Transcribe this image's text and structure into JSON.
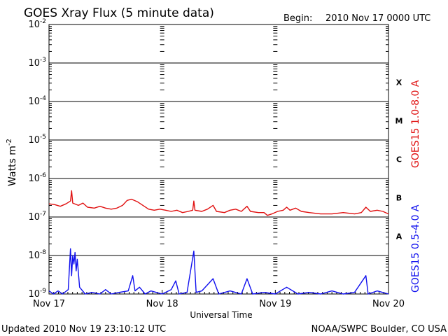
{
  "header": {
    "title": "GOES Xray Flux (5 minute data)",
    "begin_label": "Begin:",
    "begin_value": "2010 Nov 17 0000 UTC"
  },
  "footer": {
    "updated": "Updated 2010 Nov 19 23:10:12 UTC",
    "source": "NOAA/SWPC Boulder, CO USA"
  },
  "colors": {
    "long_channel": "#e01010",
    "short_channel": "#1010ee",
    "axes": "#000000"
  },
  "chart_data": {
    "type": "line",
    "title": "GOES Xray Flux (5 minute data)",
    "xlabel": "Universal Time",
    "ylabel_main": "Watts m",
    "ylabel_sup": "-2",
    "yscale": "log",
    "ylim": [
      1e-09,
      0.01
    ],
    "y_ticks": [
      {
        "v": 0.01,
        "base": "10",
        "exp": "-2"
      },
      {
        "v": 0.001,
        "base": "10",
        "exp": "-3"
      },
      {
        "v": 0.0001,
        "base": "10",
        "exp": "-4"
      },
      {
        "v": 1e-05,
        "base": "10",
        "exp": "-5"
      },
      {
        "v": 1e-06,
        "base": "10",
        "exp": "-6"
      },
      {
        "v": 1e-07,
        "base": "10",
        "exp": "-7"
      },
      {
        "v": 1e-08,
        "base": "10",
        "exp": "-8"
      },
      {
        "v": 1e-09,
        "base": "10",
        "exp": "-9"
      }
    ],
    "x_ticks": [
      "Nov 17",
      "Nov 18",
      "Nov 19",
      "Nov 20"
    ],
    "xlim_days": [
      0,
      3
    ],
    "grid": "horizontal lines at each decade",
    "flare_classes": [
      {
        "label": "X",
        "v": 0.000316
      },
      {
        "label": "M",
        "v": 3.16e-05
      },
      {
        "label": "C",
        "v": 3.16e-06
      },
      {
        "label": "B",
        "v": 3.16e-07
      },
      {
        "label": "A",
        "v": 3.16e-08
      }
    ],
    "series": [
      {
        "name": "GOES15 1.0-8.0 A",
        "color": "#e01010",
        "points": [
          [
            0.0,
            2.2e-07
          ],
          [
            0.05,
            2.1e-07
          ],
          [
            0.1,
            1.9e-07
          ],
          [
            0.15,
            2.2e-07
          ],
          [
            0.19,
            2.6e-07
          ],
          [
            0.2,
            4.8e-07
          ],
          [
            0.21,
            2.3e-07
          ],
          [
            0.26,
            2e-07
          ],
          [
            0.3,
            2.3e-07
          ],
          [
            0.34,
            1.8e-07
          ],
          [
            0.4,
            1.7e-07
          ],
          [
            0.45,
            1.9e-07
          ],
          [
            0.5,
            1.7e-07
          ],
          [
            0.55,
            1.6e-07
          ],
          [
            0.6,
            1.7e-07
          ],
          [
            0.65,
            2e-07
          ],
          [
            0.69,
            2.7e-07
          ],
          [
            0.73,
            2.9e-07
          ],
          [
            0.78,
            2.5e-07
          ],
          [
            0.83,
            2e-07
          ],
          [
            0.88,
            1.6e-07
          ],
          [
            0.93,
            1.5e-07
          ],
          [
            0.98,
            1.6e-07
          ],
          [
            1.03,
            1.5e-07
          ],
          [
            1.08,
            1.4e-07
          ],
          [
            1.13,
            1.5e-07
          ],
          [
            1.18,
            1.3e-07
          ],
          [
            1.23,
            1.4e-07
          ],
          [
            1.27,
            1.5e-07
          ],
          [
            1.28,
            2.6e-07
          ],
          [
            1.29,
            1.5e-07
          ],
          [
            1.35,
            1.4e-07
          ],
          [
            1.4,
            1.6e-07
          ],
          [
            1.45,
            2e-07
          ],
          [
            1.48,
            1.4e-07
          ],
          [
            1.55,
            1.3e-07
          ],
          [
            1.6,
            1.5e-07
          ],
          [
            1.65,
            1.6e-07
          ],
          [
            1.7,
            1.4e-07
          ],
          [
            1.75,
            1.9e-07
          ],
          [
            1.78,
            1.4e-07
          ],
          [
            1.85,
            1.3e-07
          ],
          [
            1.9,
            1.3e-07
          ],
          [
            1.93,
            1.1e-07
          ],
          [
            1.97,
            1.2e-07
          ],
          [
            2.02,
            1.4e-07
          ],
          [
            2.07,
            1.5e-07
          ],
          [
            2.1,
            1.8e-07
          ],
          [
            2.13,
            1.5e-07
          ],
          [
            2.18,
            1.7e-07
          ],
          [
            2.23,
            1.4e-07
          ],
          [
            2.3,
            1.3e-07
          ],
          [
            2.4,
            1.2e-07
          ],
          [
            2.5,
            1.2e-07
          ],
          [
            2.6,
            1.3e-07
          ],
          [
            2.7,
            1.2e-07
          ],
          [
            2.76,
            1.3e-07
          ],
          [
            2.8,
            1.8e-07
          ],
          [
            2.84,
            1.4e-07
          ],
          [
            2.9,
            1.5e-07
          ],
          [
            2.95,
            1.4e-07
          ],
          [
            3.0,
            1.2e-07
          ]
        ]
      },
      {
        "name": "GOES15 0.5-4.0 A",
        "color": "#1010ee",
        "points": [
          [
            0.0,
            1.2e-09
          ],
          [
            0.04,
            1e-09
          ],
          [
            0.08,
            1.2e-09
          ],
          [
            0.12,
            1e-09
          ],
          [
            0.17,
            1.3e-09
          ],
          [
            0.19,
            1.5e-08
          ],
          [
            0.2,
            3e-09
          ],
          [
            0.21,
            1e-08
          ],
          [
            0.22,
            6e-09
          ],
          [
            0.23,
            1.2e-08
          ],
          [
            0.24,
            4e-09
          ],
          [
            0.25,
            8e-09
          ],
          [
            0.27,
            1.5e-09
          ],
          [
            0.32,
            1e-09
          ],
          [
            0.38,
            1.1e-09
          ],
          [
            0.45,
            1e-09
          ],
          [
            0.5,
            1.3e-09
          ],
          [
            0.55,
            1e-09
          ],
          [
            0.62,
            1.1e-09
          ],
          [
            0.7,
            1.2e-09
          ],
          [
            0.74,
            3e-09
          ],
          [
            0.76,
            1.2e-09
          ],
          [
            0.8,
            1.5e-09
          ],
          [
            0.85,
            1e-09
          ],
          [
            0.9,
            1.2e-09
          ],
          [
            1.0,
            1e-09
          ],
          [
            1.08,
            1.3e-09
          ],
          [
            1.12,
            2.2e-09
          ],
          [
            1.15,
            1e-09
          ],
          [
            1.22,
            1.1e-09
          ],
          [
            1.28,
            1.3e-08
          ],
          [
            1.3,
            1.1e-09
          ],
          [
            1.35,
            1.2e-09
          ],
          [
            1.45,
            2.5e-09
          ],
          [
            1.5,
            1e-09
          ],
          [
            1.6,
            1.2e-09
          ],
          [
            1.7,
            1e-09
          ],
          [
            1.75,
            2.5e-09
          ],
          [
            1.8,
            1e-09
          ],
          [
            1.9,
            1.1e-09
          ],
          [
            2.0,
            1e-09
          ],
          [
            2.1,
            1.5e-09
          ],
          [
            2.2,
            1e-09
          ],
          [
            2.3,
            1.1e-09
          ],
          [
            2.4,
            1e-09
          ],
          [
            2.5,
            1.2e-09
          ],
          [
            2.6,
            1e-09
          ],
          [
            2.7,
            1.1e-09
          ],
          [
            2.8,
            3e-09
          ],
          [
            2.82,
            1e-09
          ],
          [
            2.9,
            1.2e-09
          ],
          [
            3.0,
            1e-09
          ]
        ]
      }
    ]
  }
}
